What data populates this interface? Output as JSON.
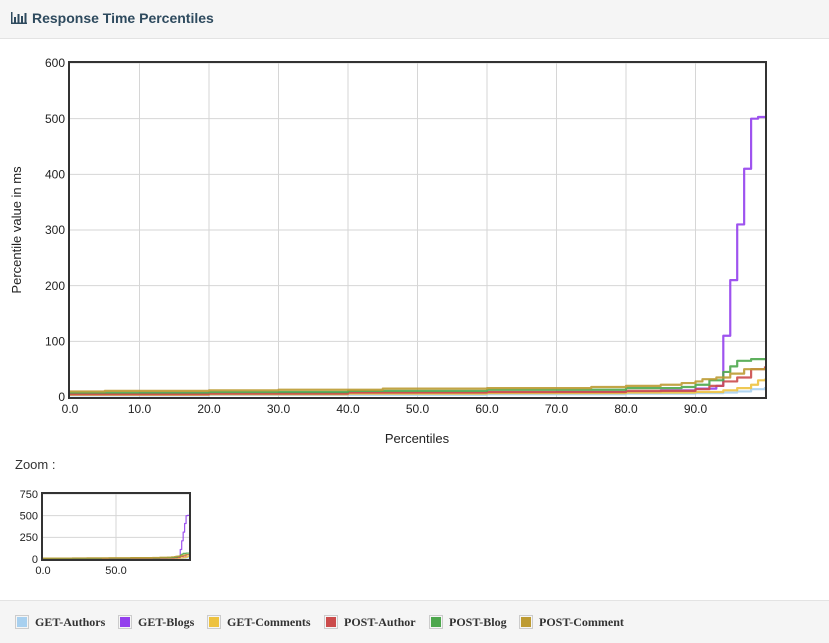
{
  "header": {
    "title": "Response Time Percentiles",
    "icon": "bar-chart-icon"
  },
  "zoom_label": "Zoom :",
  "colors": {
    "GET-Authors": "#a8d0ef",
    "GET-Blogs": "#9440ed",
    "GET-Comments": "#edc240",
    "POST-Author": "#cb4b4b",
    "POST-Blog": "#4da74d",
    "POST-Comment": "#bd9b33"
  },
  "legend": [
    {
      "label": "GET-Authors",
      "color": "#a8d0ef"
    },
    {
      "label": "GET-Blogs",
      "color": "#9440ed"
    },
    {
      "label": "GET-Comments",
      "color": "#edc240"
    },
    {
      "label": "POST-Author",
      "color": "#cb4b4b"
    },
    {
      "label": "POST-Blog",
      "color": "#4da74d"
    },
    {
      "label": "POST-Comment",
      "color": "#bd9b33"
    }
  ],
  "chart_data": [
    {
      "type": "line",
      "title": "",
      "xlabel": "Percentiles",
      "ylabel": "Percentile value in ms",
      "xlim": [
        0,
        100
      ],
      "ylim": [
        0,
        600
      ],
      "x_ticks": [
        "0.0",
        "10.0",
        "20.0",
        "30.0",
        "40.0",
        "50.0",
        "60.0",
        "70.0",
        "80.0",
        "90.0"
      ],
      "y_ticks": [
        "0",
        "100",
        "200",
        "300",
        "400",
        "500",
        "600"
      ],
      "grid": true,
      "series": [
        {
          "name": "GET-Authors",
          "color": "#a8d0ef",
          "x": [
            0,
            20,
            40,
            60,
            80,
            90,
            94,
            96,
            98,
            100
          ],
          "y": [
            3,
            4,
            4,
            5,
            6,
            7,
            8,
            10,
            14,
            18
          ]
        },
        {
          "name": "GET-Blogs",
          "color": "#9440ed",
          "x": [
            0,
            10,
            30,
            50,
            70,
            85,
            90,
            93,
            94,
            95,
            96,
            97,
            98,
            99,
            100
          ],
          "y": [
            5,
            6,
            7,
            8,
            9,
            12,
            15,
            20,
            110,
            210,
            310,
            410,
            500,
            503,
            505
          ]
        },
        {
          "name": "GET-Comments",
          "color": "#edc240",
          "x": [
            0,
            20,
            40,
            60,
            80,
            90,
            94,
            96,
            98,
            99,
            100
          ],
          "y": [
            4,
            5,
            6,
            7,
            8,
            9,
            12,
            16,
            22,
            30,
            33
          ]
        },
        {
          "name": "POST-Author",
          "color": "#cb4b4b",
          "x": [
            0,
            20,
            40,
            60,
            80,
            90,
            92,
            94,
            96,
            98,
            100
          ],
          "y": [
            5,
            6,
            8,
            9,
            11,
            14,
            20,
            28,
            35,
            50,
            55
          ]
        },
        {
          "name": "POST-Blog",
          "color": "#4da74d",
          "x": [
            0,
            20,
            40,
            60,
            80,
            88,
            90,
            92,
            94,
            95,
            96,
            98,
            100
          ],
          "y": [
            8,
            9,
            11,
            13,
            16,
            18,
            22,
            30,
            45,
            55,
            65,
            68,
            68
          ]
        },
        {
          "name": "POST-Comment",
          "color": "#bd9b33",
          "x": [
            0,
            5,
            20,
            30,
            45,
            60,
            75,
            80,
            85,
            88,
            90,
            91,
            93,
            95,
            97,
            100
          ],
          "y": [
            10,
            11,
            12,
            13,
            15,
            16,
            18,
            20,
            22,
            25,
            28,
            32,
            35,
            42,
            50,
            52
          ]
        }
      ]
    },
    {
      "type": "line",
      "title": "",
      "xlim": [
        0,
        100
      ],
      "ylim": [
        0,
        750
      ],
      "x_ticks": [
        "0.0",
        "50.0"
      ],
      "y_ticks": [
        "0",
        "250",
        "500",
        "750"
      ],
      "grid": true
    }
  ]
}
